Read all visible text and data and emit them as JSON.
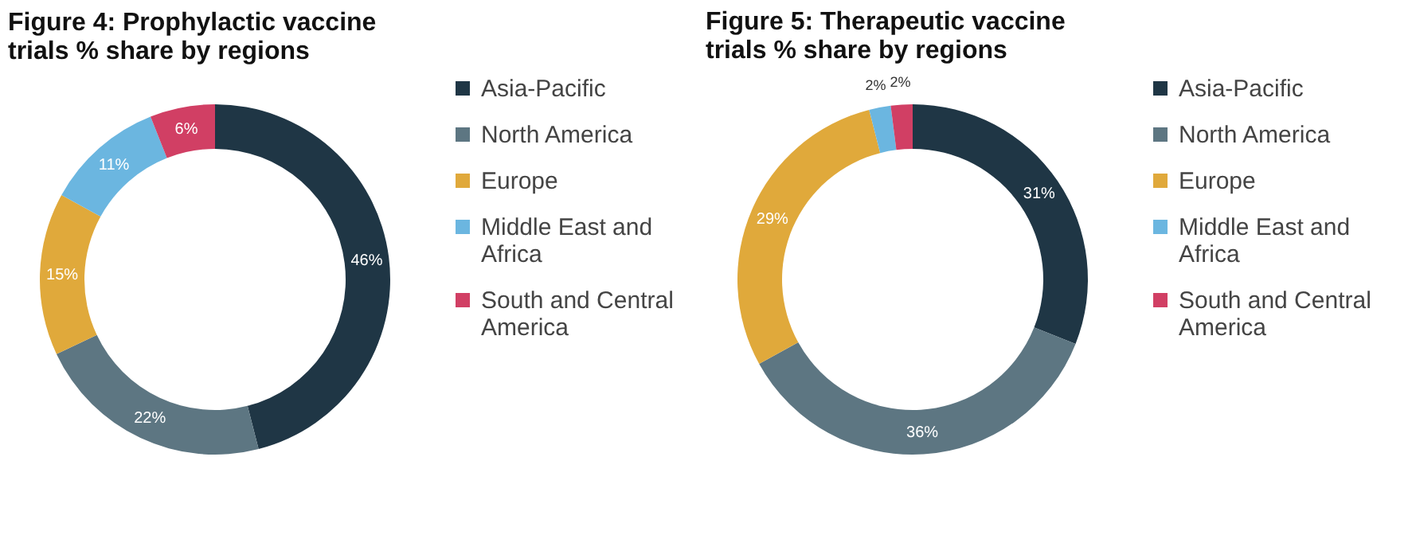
{
  "chart_data": [
    {
      "type": "donut",
      "title": "Figure 4: Prophylactic vaccine trials % share by regions",
      "categories": [
        "Asia-Pacific",
        "North America",
        "Europe",
        "Middle East and Africa",
        "South and Central America"
      ],
      "values": [
        46,
        22,
        15,
        11,
        6
      ],
      "colors": [
        "#1f3645",
        "#5d7682",
        "#e0a93b",
        "#6bb6e0",
        "#d13f64"
      ],
      "value_labels": [
        "46%",
        "22%",
        "15%",
        "11%",
        "6%"
      ],
      "legend": "right"
    },
    {
      "type": "donut",
      "title": "Figure 5: Therapeutic vaccine trials % share by regions",
      "categories": [
        "Asia-Pacific",
        "North America",
        "Europe",
        "Middle East and Africa",
        "South and Central America"
      ],
      "values": [
        31,
        36,
        29,
        2,
        2
      ],
      "colors": [
        "#1f3645",
        "#5d7682",
        "#e0a93b",
        "#6bb6e0",
        "#d13f64"
      ],
      "value_labels": [
        "31%",
        "36%",
        "29%",
        "2%",
        "2%"
      ],
      "legend": "right"
    }
  ]
}
